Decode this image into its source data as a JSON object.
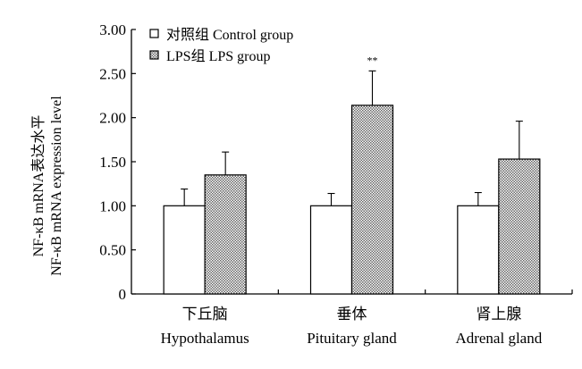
{
  "chart_data": {
    "type": "bar",
    "ylabel_cn": "NF-κB mRNA表达水平",
    "ylabel_en": "NF-κB mRNA expression level",
    "ylim": [
      0,
      3.0
    ],
    "yticks": [
      "0",
      "0.50",
      "1.00",
      "1.50",
      "2.00",
      "2.50",
      "3.00"
    ],
    "categories": [
      {
        "cn": "下丘脑",
        "en": "Hypothalamus"
      },
      {
        "cn": "垂体",
        "en": "Pituitary gland"
      },
      {
        "cn": "肾上腺",
        "en": "Adrenal gland"
      }
    ],
    "series": [
      {
        "name": "对照组  Control group",
        "fill": "open",
        "values": [
          1.0,
          1.0,
          1.0
        ],
        "errors": [
          0.19,
          0.14,
          0.15
        ]
      },
      {
        "name": "LPS组  LPS group",
        "fill": "dotted",
        "values": [
          1.35,
          2.14,
          1.53
        ],
        "errors": [
          0.26,
          0.39,
          0.43
        ]
      }
    ],
    "annotations": [
      {
        "text": "**",
        "category": 1,
        "series": 1
      }
    ],
    "legend_position": "top-left",
    "grid": false
  }
}
